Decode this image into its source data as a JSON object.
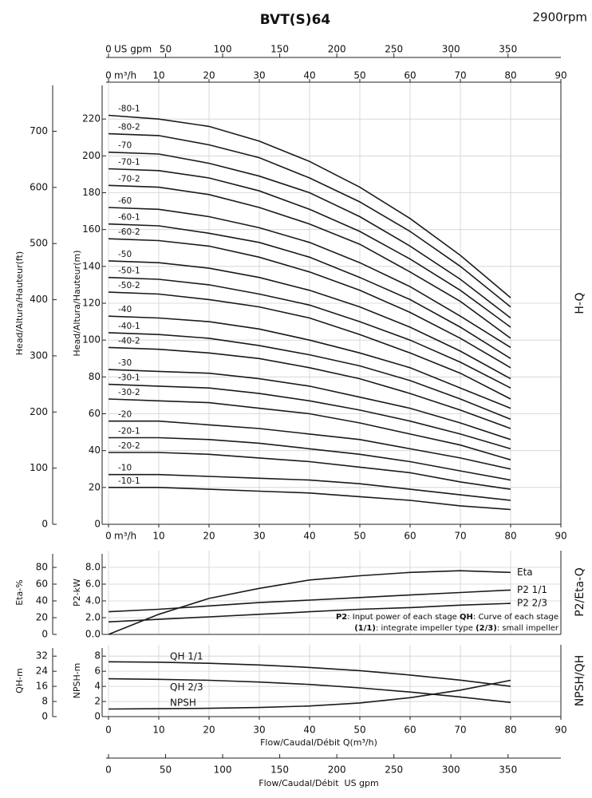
{
  "chart_data": [
    {
      "type": "line",
      "title": "BVT(S)64",
      "subtitle": "2900rpm",
      "panel_label": "H-Q",
      "color": "#1a1a1a",
      "grid": true,
      "x": [
        0,
        10,
        20,
        30,
        40,
        50,
        60,
        70,
        80
      ],
      "xlim": [
        0,
        90
      ],
      "xticks": [
        0,
        10,
        20,
        30,
        40,
        50,
        60,
        70,
        80,
        90
      ],
      "x_unit": "m³/h",
      "x2lim": [
        0,
        396.3
      ],
      "x2ticks": [
        0,
        50,
        100,
        150,
        200,
        250,
        300,
        350
      ],
      "x2_unit": "US gpm",
      "ylabel": "Head/Altura/Hauteur(m)",
      "ylim": [
        0,
        240
      ],
      "yticks": [
        0,
        20,
        40,
        60,
        80,
        100,
        120,
        140,
        160,
        180,
        200,
        220
      ],
      "y2label": "Head/Altura/Hauteur(ft)",
      "y2lim": [
        0,
        787.4
      ],
      "y2ticks": [
        0,
        100,
        200,
        300,
        400,
        500,
        600,
        700
      ],
      "series": [
        {
          "name": "-80-1",
          "values": [
            222,
            220,
            216,
            208,
            197,
            183,
            166,
            146,
            123
          ]
        },
        {
          "name": "-80-2",
          "values": [
            212,
            211,
            206,
            199,
            188,
            175,
            159,
            140,
            118
          ]
        },
        {
          "name": "-70",
          "values": [
            202,
            201,
            196,
            189,
            180,
            167,
            151,
            133,
            112
          ]
        },
        {
          "name": "-70-1",
          "values": [
            193,
            192,
            188,
            181,
            171,
            159,
            144,
            127,
            107
          ]
        },
        {
          "name": "-70-2",
          "values": [
            184,
            183,
            179,
            172,
            163,
            152,
            137,
            121,
            101
          ]
        },
        {
          "name": "-60",
          "values": [
            172,
            171,
            167,
            161,
            153,
            142,
            129,
            113,
            96
          ]
        },
        {
          "name": "-60-1",
          "values": [
            163,
            162,
            158,
            153,
            145,
            134,
            122,
            107,
            90
          ]
        },
        {
          "name": "-60-2",
          "values": [
            155,
            154,
            151,
            145,
            137,
            127,
            115,
            101,
            85
          ]
        },
        {
          "name": "-50",
          "values": [
            143,
            142,
            139,
            134,
            127,
            118,
            107,
            94,
            79
          ]
        },
        {
          "name": "-50-1",
          "values": [
            134,
            133,
            130,
            125,
            119,
            110,
            100,
            88,
            74
          ]
        },
        {
          "name": "-50-2",
          "values": [
            126,
            125,
            122,
            118,
            112,
            103,
            93,
            82,
            68
          ]
        },
        {
          "name": "-40",
          "values": [
            113,
            112,
            110,
            106,
            100,
            93,
            85,
            74,
            63
          ]
        },
        {
          "name": "-40-1",
          "values": [
            104,
            103,
            101,
            97,
            92,
            86,
            78,
            68,
            57
          ]
        },
        {
          "name": "-40-2",
          "values": [
            96,
            95,
            93,
            90,
            85,
            79,
            71,
            62,
            52
          ]
        },
        {
          "name": "-30",
          "values": [
            84,
            83,
            82,
            79,
            75,
            69,
            63,
            55,
            46
          ]
        },
        {
          "name": "-30-1",
          "values": [
            76,
            75,
            74,
            71,
            67,
            62,
            56,
            49,
            41
          ]
        },
        {
          "name": "-30-2",
          "values": [
            68,
            67,
            66,
            63,
            60,
            55,
            49,
            43,
            35
          ]
        },
        {
          "name": "-20",
          "values": [
            56,
            56,
            54,
            52,
            49,
            46,
            41,
            36,
            30
          ]
        },
        {
          "name": "-20-1",
          "values": [
            47,
            47,
            46,
            44,
            41,
            38,
            34,
            29,
            24
          ]
        },
        {
          "name": "-20-2",
          "values": [
            39,
            39,
            38,
            36,
            34,
            31,
            28,
            23,
            19
          ]
        },
        {
          "name": "-10",
          "values": [
            27,
            27,
            26,
            25,
            24,
            22,
            19,
            16,
            13
          ]
        },
        {
          "name": "-10-1",
          "values": [
            20,
            20,
            19,
            18,
            17,
            15,
            13,
            10,
            8
          ]
        }
      ]
    },
    {
      "type": "line",
      "panel_label": "P2/Eta-Q",
      "color": "#1a1a1a",
      "grid": true,
      "x": [
        0,
        10,
        20,
        30,
        40,
        50,
        60,
        70,
        80
      ],
      "xlim": [
        0,
        90
      ],
      "xticks": [
        0,
        10,
        20,
        30,
        40,
        50,
        60,
        70,
        80,
        90
      ],
      "ylabel": "P2-kW",
      "ylim": [
        0,
        10
      ],
      "yticks": [
        {
          "value": 0,
          "label": "0.0"
        },
        {
          "value": 2,
          "label": "2.0"
        },
        {
          "value": 4,
          "label": "4.0"
        },
        {
          "value": 6,
          "label": "6.0"
        },
        {
          "value": 8,
          "label": "8.0"
        }
      ],
      "y2label": "Eta-%",
      "y2lim": [
        0,
        100
      ],
      "y2ticks": [
        0,
        20,
        40,
        60,
        80
      ],
      "series": [
        {
          "name": "Eta",
          "axis": "y2",
          "values": [
            0,
            24,
            43,
            55,
            65,
            70,
            74,
            76,
            74
          ]
        },
        {
          "name": "P2 1/1",
          "values": [
            2.7,
            3.0,
            3.4,
            3.8,
            4.1,
            4.4,
            4.7,
            5.0,
            5.3
          ]
        },
        {
          "name": "P2 2/3",
          "values": [
            1.5,
            1.8,
            2.1,
            2.4,
            2.7,
            3.0,
            3.2,
            3.5,
            3.7
          ]
        }
      ],
      "notes": [
        [
          "P2",
          ": Input power of each stage ",
          "QH",
          ": Curve of each stage"
        ],
        [
          "(1/1)",
          ": integrate impeller type ",
          "(2/3)",
          ": small impeller"
        ]
      ]
    },
    {
      "type": "line",
      "panel_label": "NPSH/QH",
      "color": "#1a1a1a",
      "grid": true,
      "x": [
        0,
        10,
        20,
        30,
        40,
        50,
        60,
        70,
        80
      ],
      "xlim": [
        0,
        90
      ],
      "xticks": [
        0,
        10,
        20,
        30,
        40,
        50,
        60,
        70,
        80,
        90
      ],
      "xlabel": "Flow/Caudal/Débit Q(m³/h)",
      "x2lim": [
        0,
        396.3
      ],
      "x2ticks": [
        0,
        50,
        100,
        150,
        200,
        250,
        300,
        350
      ],
      "x2label": "Flow/Caudal/Débit  US gpm",
      "ylabel": "NPSH-m",
      "ylim": [
        0,
        9.5
      ],
      "yticks": [
        0,
        2,
        4,
        6,
        8
      ],
      "y2label": "QH-m",
      "y2lim": [
        0,
        38
      ],
      "y2ticks": [
        0,
        8,
        16,
        24,
        32
      ],
      "series": [
        {
          "name": "QH 1/1",
          "axis": "y2",
          "values": [
            29,
            28.8,
            28.2,
            27.3,
            26,
            24.3,
            22,
            19.3,
            16
          ]
        },
        {
          "name": "QH 2/3",
          "axis": "y2",
          "values": [
            20,
            19.7,
            19.2,
            18.3,
            17,
            15.2,
            13,
            10.4,
            7.5
          ]
        },
        {
          "name": "NPSH",
          "values": [
            1.0,
            1.05,
            1.1,
            1.2,
            1.4,
            1.8,
            2.5,
            3.5,
            4.8
          ]
        }
      ]
    }
  ]
}
